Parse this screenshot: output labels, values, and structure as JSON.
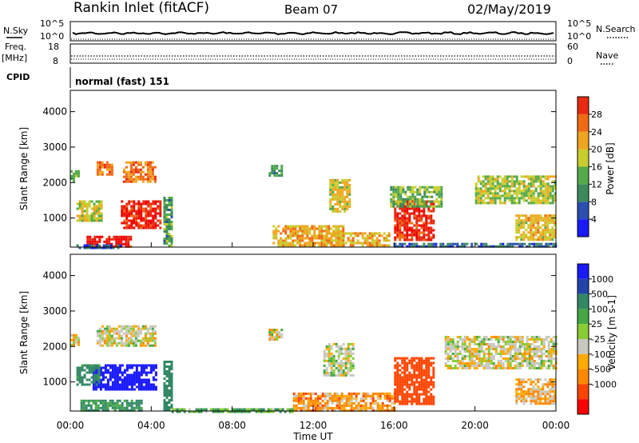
{
  "header": {
    "station": "Rankin Inlet (fitACF)",
    "beam": "Beam 07",
    "date": "02/May/2019"
  },
  "status_panels": {
    "nsky_label": "N.Sky",
    "nsky_ticks": [
      "10^5",
      "10^0"
    ],
    "nsearch_label": "N.Search",
    "nsearch_ticks": [
      "10^5",
      "10^0"
    ],
    "freq_label": "Freq.",
    "freq_unit": "[MHz]",
    "freq_ticks": [
      "18",
      "8"
    ],
    "nave_label": "Nave",
    "nave_ticks": [
      "60",
      "0"
    ],
    "cpid_label": "CPID",
    "cpid_value": "normal (fast) 151"
  },
  "colors": {
    "power_scale": [
      "#1a1aff",
      "#2a4fb0",
      "#3c8a5c",
      "#52aa4a",
      "#c8cc2c",
      "#f0a51e",
      "#f06a14",
      "#e82a10",
      "#ee0000"
    ],
    "velocity_scale": [
      "#ff0000",
      "#ff4400",
      "#ff8800",
      "#ffaa00",
      "#c8c8c0",
      "#88cc33",
      "#44a844",
      "#338866",
      "#2244aa",
      "#1a1aff"
    ]
  },
  "chart_data": [
    {
      "type": "heatmap",
      "title": "Power",
      "ylabel": "Slant Range [km]",
      "xlabel": "Time UT",
      "x_ticks": [
        "00:00",
        "04:00",
        "08:00",
        "12:00",
        "16:00",
        "20:00",
        "00:00"
      ],
      "y_ticks": [
        "1000",
        "2000",
        "3000",
        "4000"
      ],
      "xlim_hours": [
        0,
        24
      ],
      "ylim_km": [
        180,
        4600
      ],
      "colorbar": {
        "label": "Power [dB]",
        "ticks": [
          "4",
          "8",
          "12",
          "16",
          "20",
          "24",
          "28"
        ],
        "range": [
          0,
          30
        ]
      },
      "patches": [
        {
          "t0": 0.8,
          "t1": 3.0,
          "r0": 180,
          "r1": 500,
          "value": 27
        },
        {
          "t0": 0.3,
          "t1": 2.5,
          "r0": 180,
          "r1": 260,
          "value": 5
        },
        {
          "t0": 0.0,
          "t1": 0.4,
          "r0": 2050,
          "r1": 2350,
          "value": 11
        },
        {
          "t0": 0.3,
          "t1": 1.5,
          "r0": 900,
          "r1": 1500,
          "value": 15
        },
        {
          "t0": 1.3,
          "t1": 2.1,
          "r0": 2200,
          "r1": 2600,
          "value": 21
        },
        {
          "t0": 2.6,
          "t1": 4.2,
          "r0": 2000,
          "r1": 2600,
          "value": 21
        },
        {
          "t0": 2.5,
          "t1": 4.4,
          "r0": 700,
          "r1": 1500,
          "value": 26
        },
        {
          "t0": 4.6,
          "t1": 5.0,
          "r0": 200,
          "r1": 1600,
          "value": 10
        },
        {
          "t0": 10.0,
          "t1": 13.5,
          "r0": 200,
          "r1": 800,
          "value": 18
        },
        {
          "t0": 12.5,
          "t1": 15.8,
          "r0": 200,
          "r1": 600,
          "value": 18
        },
        {
          "t0": 9.8,
          "t1": 10.4,
          "r0": 2200,
          "r1": 2500,
          "value": 10
        },
        {
          "t0": 12.8,
          "t1": 13.8,
          "r0": 1200,
          "r1": 2100,
          "value": 16
        },
        {
          "t0": 16.0,
          "t1": 18.0,
          "r0": 350,
          "r1": 1500,
          "value": 26
        },
        {
          "t0": 15.8,
          "t1": 18.4,
          "r0": 1300,
          "r1": 1900,
          "value": 12
        },
        {
          "t0": 20.0,
          "t1": 24.0,
          "r0": 1400,
          "r1": 2200,
          "value": 14
        },
        {
          "t0": 22.0,
          "t1": 24.0,
          "r0": 400,
          "r1": 1100,
          "value": 17
        },
        {
          "t0": 16.0,
          "t1": 24.0,
          "r0": 180,
          "r1": 300,
          "value": 6
        }
      ]
    },
    {
      "type": "heatmap",
      "title": "Velocity",
      "ylabel": "Slant Range [km]",
      "xlabel": "Time UT",
      "x_ticks": [
        "00:00",
        "04:00",
        "08:00",
        "12:00",
        "16:00",
        "20:00",
        "00:00"
      ],
      "y_ticks": [
        "1000",
        "2000",
        "3000",
        "4000"
      ],
      "xlim_hours": [
        0,
        24
      ],
      "ylim_km": [
        180,
        4600
      ],
      "colorbar": {
        "label": "Velocity [m s-1]",
        "ticks": [
          "1000",
          "500",
          "100",
          "25",
          "-25",
          "-100",
          "-500",
          "-1000"
        ]
      },
      "patches": [
        {
          "t0": 0.0,
          "t1": 0.4,
          "r0": 2050,
          "r1": 2350,
          "value": 0
        },
        {
          "t0": 1.3,
          "t1": 4.2,
          "r0": 2000,
          "r1": 2600,
          "value": 0
        },
        {
          "t0": 1.1,
          "t1": 4.2,
          "r0": 800,
          "r1": 1500,
          "value": 900
        },
        {
          "t0": 0.3,
          "t1": 1.4,
          "r0": 900,
          "r1": 1500,
          "value": 150
        },
        {
          "t0": 0.5,
          "t1": 3.5,
          "r0": 200,
          "r1": 500,
          "value": 120
        },
        {
          "t0": 4.6,
          "t1": 5.0,
          "r0": 200,
          "r1": 1600,
          "value": 200
        },
        {
          "t0": 9.8,
          "t1": 10.4,
          "r0": 2200,
          "r1": 2500,
          "value": 0
        },
        {
          "t0": 11.0,
          "t1": 16.0,
          "r0": 200,
          "r1": 700,
          "value": -60
        },
        {
          "t0": 12.5,
          "t1": 14.0,
          "r0": 1200,
          "r1": 2100,
          "value": 10
        },
        {
          "t0": 16.0,
          "t1": 18.0,
          "r0": 400,
          "r1": 1700,
          "value": -300
        },
        {
          "t0": 18.5,
          "t1": 24.0,
          "r0": 1400,
          "r1": 2300,
          "value": 0
        },
        {
          "t0": 22.0,
          "t1": 24.0,
          "r0": 400,
          "r1": 1100,
          "value": -40
        },
        {
          "t0": 5.0,
          "t1": 11.0,
          "r0": 180,
          "r1": 260,
          "value": 80
        }
      ]
    }
  ]
}
